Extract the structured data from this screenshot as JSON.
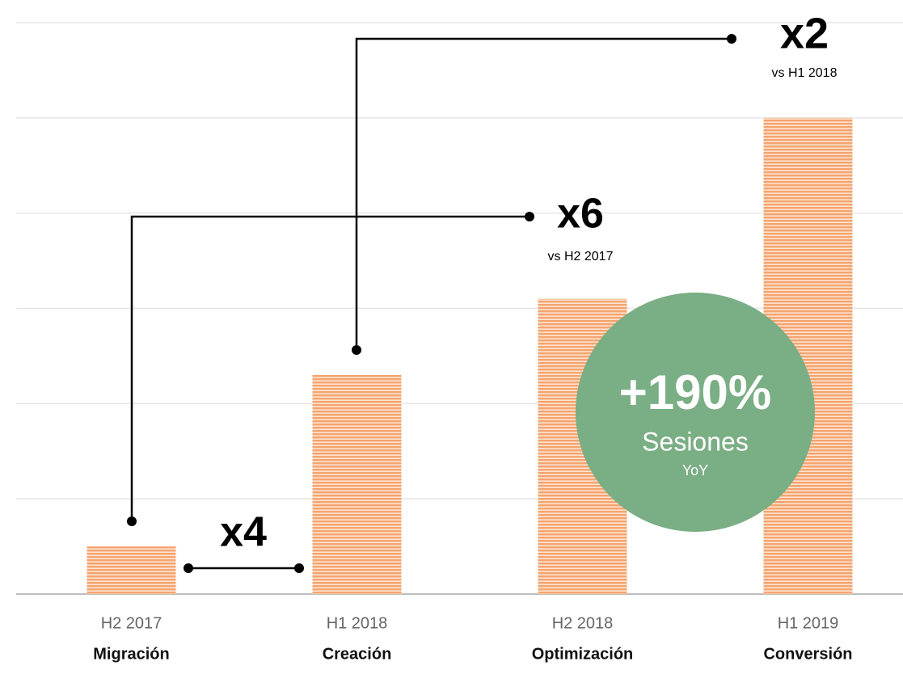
{
  "chart_data": {
    "type": "bar",
    "categories": [
      "H2 2017",
      "H1 2018",
      "H2 2018",
      "H1 2019"
    ],
    "phases": [
      "Migración",
      "Creación",
      "Optimización",
      "Conversión"
    ],
    "values": [
      0.5,
      2.3,
      3.1,
      5.0
    ],
    "color": "#f5a46e",
    "ylim": [
      0,
      6
    ],
    "yticks": [
      0,
      1,
      2,
      3,
      4,
      5,
      6
    ],
    "grid": true,
    "annotations": {
      "x2": {
        "text": "x2",
        "note": "vs H1 2018"
      },
      "x6": {
        "text": "x6",
        "note": "vs H2 2017"
      },
      "x4": {
        "text": "x4"
      },
      "badge": {
        "text": "+190%",
        "line1": "Sesiones",
        "line2": "YoY"
      }
    }
  }
}
